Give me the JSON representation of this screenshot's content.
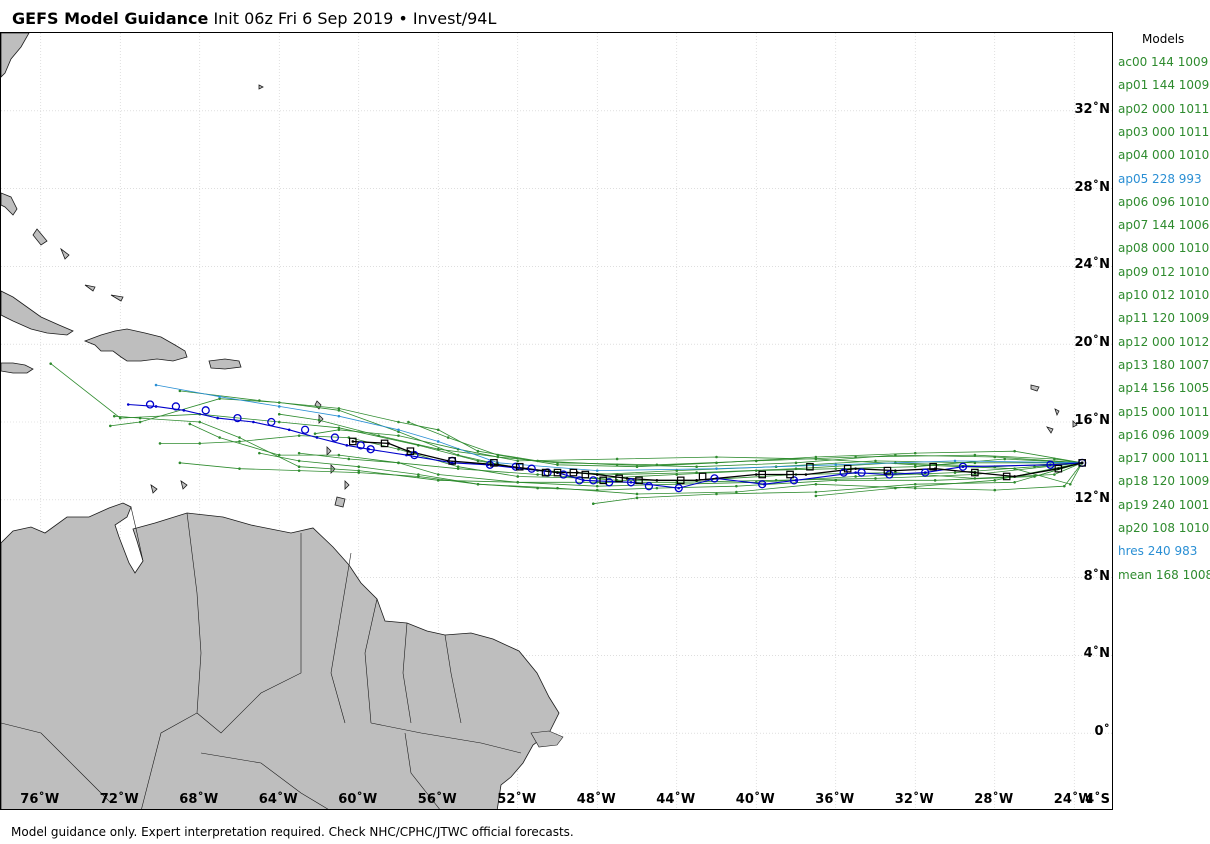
{
  "header": {
    "bold": "GEFS Model Guidance",
    "rest": "Init 06z Fri 6 Sep 2019 • Invest/94L"
  },
  "footer": "Model guidance only. Expert interpretation required. Check NHC/CPHC/JTWC official forecasts.",
  "map": {
    "lon_range": [
      -78,
      -22
    ],
    "lat_range": [
      -4,
      36
    ],
    "lat_ticks": [
      {
        "value": 32,
        "label": "32˚N"
      },
      {
        "value": 28,
        "label": "28˚N"
      },
      {
        "value": 24,
        "label": "24˚N"
      },
      {
        "value": 20,
        "label": "20˚N"
      },
      {
        "value": 16,
        "label": "16˚N"
      },
      {
        "value": 12,
        "label": "12˚N"
      },
      {
        "value": 8,
        "label": "8˚N"
      },
      {
        "value": 4,
        "label": "4˚N"
      },
      {
        "value": 0,
        "label": "0˚"
      },
      {
        "value": -4,
        "label": "4˚S"
      }
    ],
    "lon_ticks": [
      {
        "value": -76,
        "label": "76˚W"
      },
      {
        "value": -72,
        "label": "72˚W"
      },
      {
        "value": -68,
        "label": "68˚W"
      },
      {
        "value": -64,
        "label": "64˚W"
      },
      {
        "value": -60,
        "label": "60˚W"
      },
      {
        "value": -56,
        "label": "56˚W"
      },
      {
        "value": -52,
        "label": "52˚W"
      },
      {
        "value": -48,
        "label": "48˚W"
      },
      {
        "value": -44,
        "label": "44˚W"
      },
      {
        "value": -40,
        "label": "40˚W"
      },
      {
        "value": -36,
        "label": "36˚W"
      },
      {
        "value": -32,
        "label": "32˚W"
      },
      {
        "value": -28,
        "label": "28˚W"
      },
      {
        "value": -24,
        "label": "24˚W"
      }
    ],
    "colors": {
      "land": "#bebebe",
      "coast": "#1a1a1a",
      "grid": "#cccccc",
      "ensemble": "#2e8b2e",
      "hres": "#2a8fd4",
      "mean": "#000000",
      "ensemble_mean_marker": "#0000cc"
    }
  },
  "legend": {
    "title": "Models",
    "items": [
      {
        "text": "ac00 144 1009",
        "color": "#2e8b2e"
      },
      {
        "text": "ap01 144 1009",
        "color": "#2e8b2e"
      },
      {
        "text": "ap02 000 1011",
        "color": "#2e8b2e"
      },
      {
        "text": "ap03 000 1011",
        "color": "#2e8b2e"
      },
      {
        "text": "ap04 000 1010",
        "color": "#2e8b2e"
      },
      {
        "text": "ap05 228 993",
        "color": "#2a8fd4"
      },
      {
        "text": "ap06 096 1010",
        "color": "#2e8b2e"
      },
      {
        "text": "ap07 144 1006",
        "color": "#2e8b2e"
      },
      {
        "text": "ap08 000 1010",
        "color": "#2e8b2e"
      },
      {
        "text": "ap09 012 1010",
        "color": "#2e8b2e"
      },
      {
        "text": "ap10 012 1010",
        "color": "#2e8b2e"
      },
      {
        "text": "ap11 120 1009",
        "color": "#2e8b2e"
      },
      {
        "text": "ap12 000 1012",
        "color": "#2e8b2e"
      },
      {
        "text": "ap13 180 1007",
        "color": "#2e8b2e"
      },
      {
        "text": "ap14 156 1005",
        "color": "#2e8b2e"
      },
      {
        "text": "ap15 000 1011",
        "color": "#2e8b2e"
      },
      {
        "text": "ap16 096 1009",
        "color": "#2e8b2e"
      },
      {
        "text": "ap17 000 1011",
        "color": "#2e8b2e"
      },
      {
        "text": "ap18 120 1009",
        "color": "#2e8b2e"
      },
      {
        "text": "ap19 240 1001",
        "color": "#2e8b2e"
      },
      {
        "text": "ap20 108 1010",
        "color": "#2e8b2e"
      },
      {
        "text": "hres 240 983",
        "color": "#2a8fd4"
      },
      {
        "text": "mean 168 1008",
        "color": "#2e8b2e"
      }
    ]
  },
  "tracks": {
    "mean": [
      [
        -23.6,
        13.9
      ],
      [
        -24.8,
        13.6
      ],
      [
        -27,
        13.2
      ],
      [
        -29,
        13.4
      ],
      [
        -31,
        13.6
      ],
      [
        -33,
        13.5
      ],
      [
        -35,
        13.6
      ],
      [
        -37.5,
        13.3
      ],
      [
        -40,
        13.3
      ],
      [
        -43,
        13.0
      ],
      [
        -45,
        13.0
      ],
      [
        -46.5,
        13.1
      ],
      [
        -48,
        13.3
      ],
      [
        -49,
        13.4
      ],
      [
        -50,
        13.4
      ],
      [
        -51.5,
        13.6
      ],
      [
        -53,
        13.8
      ],
      [
        -55.5,
        14.0
      ],
      [
        -57.5,
        14.5
      ],
      [
        -58.5,
        14.9
      ],
      [
        -60.3,
        15.0
      ]
    ],
    "hres": [
      [
        -23.6,
        13.9
      ],
      [
        -25.2,
        13.8
      ],
      [
        -29.6,
        13.7
      ],
      [
        -31.5,
        13.4
      ],
      [
        -33.5,
        13.3
      ],
      [
        -35,
        13.4
      ],
      [
        -38,
        13.0
      ],
      [
        -39.6,
        12.8
      ],
      [
        -42,
        13.1
      ],
      [
        -43.9,
        12.6
      ],
      [
        -46.3,
        12.9
      ],
      [
        -48.7,
        13.0
      ],
      [
        -50,
        13.4
      ],
      [
        -51.8,
        13.6
      ],
      [
        -53.5,
        13.8
      ],
      [
        -55.3,
        13.9
      ],
      [
        -57.6,
        14.3
      ],
      [
        -59.5,
        14.6
      ],
      [
        -60.6,
        14.8
      ],
      [
        -62.1,
        15.2
      ],
      [
        -63.5,
        15.6
      ],
      [
        -65.3,
        16.0
      ],
      [
        -67.1,
        16.2
      ],
      [
        -68.8,
        16.6
      ],
      [
        -70.2,
        16.8
      ],
      [
        -71.6,
        16.9
      ]
    ],
    "ap05": [
      [
        -23.6,
        13.9
      ],
      [
        -30,
        14.0
      ],
      [
        -36,
        13.8
      ],
      [
        -42,
        13.6
      ],
      [
        -48,
        13.5
      ],
      [
        -53,
        13.9
      ],
      [
        -56,
        15.0
      ],
      [
        -58,
        15.6
      ],
      [
        -61,
        16.3
      ],
      [
        -64,
        16.8
      ],
      [
        -67,
        17.3
      ],
      [
        -70.2,
        17.9
      ]
    ],
    "ensemble": [
      [
        [
          -23.6,
          13.9
        ],
        [
          -28,
          13.7
        ],
        [
          -33,
          13.9
        ],
        [
          -38,
          13.6
        ],
        [
          -43,
          13.4
        ],
        [
          -47,
          13.3
        ],
        [
          -51,
          13.5
        ],
        [
          -54,
          14.0
        ],
        [
          -57,
          14.8
        ],
        [
          -61,
          15.7
        ],
        [
          -64,
          16.0
        ],
        [
          -68,
          16.4
        ],
        [
          -72,
          16.2
        ],
        [
          -75.5,
          19.0
        ]
      ],
      [
        [
          -23.6,
          13.9
        ],
        [
          -29,
          13.9
        ],
        [
          -34,
          14.0
        ],
        [
          -39,
          13.7
        ],
        [
          -44,
          13.5
        ],
        [
          -48,
          13.3
        ],
        [
          -52,
          13.6
        ],
        [
          -55,
          14.3
        ],
        [
          -58,
          15.5
        ],
        [
          -61,
          16.6
        ],
        [
          -64,
          17.0
        ],
        [
          -67,
          17.2
        ],
        [
          -71,
          16.0
        ],
        [
          -72.5,
          15.8
        ]
      ],
      [
        [
          -23.6,
          13.9
        ],
        [
          -28,
          14.2
        ],
        [
          -33,
          14.3
        ],
        [
          -38,
          13.9
        ],
        [
          -43,
          13.7
        ],
        [
          -47,
          13.8
        ],
        [
          -51,
          14.0
        ],
        [
          -54,
          14.5
        ],
        [
          -56,
          15.6
        ],
        [
          -58,
          16.0
        ],
        [
          -61,
          16.7
        ],
        [
          -65,
          17.1
        ],
        [
          -69,
          17.6
        ]
      ],
      [
        [
          -23.6,
          13.9
        ],
        [
          -27,
          14.5
        ],
        [
          -32,
          14.4
        ],
        [
          -37,
          14.2
        ],
        [
          -42,
          13.9
        ],
        [
          -46,
          13.7
        ],
        [
          -50,
          13.8
        ],
        [
          -53,
          14.3
        ],
        [
          -55.5,
          15.2
        ],
        [
          -57.5,
          16.0
        ]
      ],
      [
        [
          -23.6,
          13.9
        ],
        [
          -26,
          13.2
        ],
        [
          -31,
          13.0
        ],
        [
          -36,
          13.0
        ],
        [
          -41,
          12.7
        ],
        [
          -45,
          12.6
        ],
        [
          -48,
          12.5
        ],
        [
          -51,
          12.6
        ],
        [
          -54,
          12.8
        ],
        [
          -57,
          13.2
        ],
        [
          -60,
          13.4
        ],
        [
          -63,
          13.5
        ],
        [
          -66,
          13.6
        ],
        [
          -69,
          13.9
        ]
      ],
      [
        [
          -23.6,
          13.9
        ],
        [
          -27,
          12.9
        ],
        [
          -32,
          12.8
        ],
        [
          -37,
          12.4
        ],
        [
          -42,
          12.3
        ],
        [
          -46,
          12.1
        ],
        [
          -48.2,
          11.8
        ]
      ],
      [
        [
          -23.6,
          13.9
        ],
        [
          -28,
          13.0
        ],
        [
          -33,
          12.6
        ],
        [
          -37,
          12.2
        ]
      ],
      [
        [
          -23.6,
          13.9
        ],
        [
          -29,
          13.3
        ],
        [
          -34,
          13.1
        ],
        [
          -39,
          13.0
        ],
        [
          -44,
          12.9
        ],
        [
          -48,
          12.9
        ],
        [
          -52,
          12.9
        ],
        [
          -56,
          13.0
        ],
        [
          -60,
          13.5
        ],
        [
          -63,
          13.7
        ],
        [
          -66,
          15.2
        ],
        [
          -68,
          16.0
        ],
        [
          -71,
          16.2
        ],
        [
          -72.3,
          16.3
        ]
      ],
      [
        [
          -23.6,
          13.9
        ],
        [
          -27.5,
          14.1
        ],
        [
          -32,
          13.7
        ],
        [
          -36,
          13.6
        ],
        [
          -40,
          13.5
        ],
        [
          -44,
          13.3
        ],
        [
          -48,
          13.1
        ],
        [
          -52,
          13.2
        ],
        [
          -55,
          13.7
        ],
        [
          -58,
          14.6
        ],
        [
          -60.5,
          15.2
        ],
        [
          -63,
          15.3
        ],
        [
          -66,
          15.0
        ],
        [
          -68,
          14.9
        ],
        [
          -70,
          14.9
        ]
      ],
      [
        [
          -23.6,
          13.9
        ],
        [
          -26,
          13.7
        ],
        [
          -30,
          13.4
        ],
        [
          -35,
          13.2
        ],
        [
          -40,
          12.9
        ],
        [
          -44,
          12.8
        ],
        [
          -48,
          12.7
        ],
        [
          -52,
          12.9
        ],
        [
          -56,
          13.3
        ],
        [
          -58,
          13.9
        ],
        [
          -61,
          14.3
        ],
        [
          -64,
          14.3
        ],
        [
          -67,
          15.2
        ],
        [
          -68.5,
          15.9
        ]
      ],
      [
        [
          -23.6,
          13.9
        ],
        [
          -25,
          14.1
        ],
        [
          -29,
          14.3
        ],
        [
          -35,
          14.2
        ],
        [
          -40,
          14.0
        ],
        [
          -45,
          13.8
        ],
        [
          -50,
          13.9
        ],
        [
          -53,
          14.2
        ],
        [
          -56,
          14.6
        ],
        [
          -59,
          15.3
        ],
        [
          -62,
          16.1
        ],
        [
          -64,
          16.4
        ]
      ],
      [
        [
          -23.6,
          13.9
        ],
        [
          -25,
          13.3
        ],
        [
          -29,
          13.1
        ],
        [
          -33,
          13.4
        ],
        [
          -38,
          13.3
        ],
        [
          -43,
          13.0
        ],
        [
          -47,
          13.0
        ],
        [
          -51,
          13.3
        ],
        [
          -55,
          13.6
        ],
        [
          -58,
          13.9
        ],
        [
          -60.5,
          14.1
        ],
        [
          -63,
          14.4
        ]
      ],
      [
        [
          -23.6,
          13.9
        ],
        [
          -24.5,
          12.7
        ],
        [
          -28,
          12.5
        ],
        [
          -32,
          12.6
        ],
        [
          -37,
          12.8
        ],
        [
          -41,
          12.4
        ],
        [
          -46,
          12.3
        ],
        [
          -50,
          12.6
        ],
        [
          -54,
          12.8
        ],
        [
          -57,
          13.3
        ],
        [
          -60,
          13.7
        ],
        [
          -63,
          14.0
        ],
        [
          -65,
          14.4
        ]
      ],
      [
        [
          -23.6,
          13.9
        ],
        [
          -24.2,
          12.8
        ],
        [
          -27,
          13.6
        ],
        [
          -32,
          13.8
        ],
        [
          -37,
          14.1
        ],
        [
          -42,
          14.2
        ],
        [
          -47,
          14.1
        ],
        [
          -52,
          14.0
        ],
        [
          -55,
          14.6
        ],
        [
          -58,
          15.3
        ],
        [
          -61,
          15.6
        ],
        [
          -62.2,
          15.4
        ]
      ]
    ],
    "mean_markers": [
      [
        -23.6,
        13.9
      ],
      [
        -24.8,
        13.6
      ],
      [
        -27.4,
        13.2
      ],
      [
        -29,
        13.4
      ],
      [
        -31.1,
        13.7
      ],
      [
        -33.4,
        13.5
      ],
      [
        -35.4,
        13.6
      ],
      [
        -37.3,
        13.7
      ],
      [
        -38.3,
        13.3
      ],
      [
        -39.7,
        13.3
      ],
      [
        -42.7,
        13.2
      ],
      [
        -43.8,
        13.0
      ],
      [
        -45.9,
        13.0
      ],
      [
        -46.9,
        13.1
      ],
      [
        -47.7,
        13.0
      ],
      [
        -48.6,
        13.3
      ],
      [
        -49.2,
        13.4
      ],
      [
        -50.0,
        13.4
      ],
      [
        -50.6,
        13.4
      ],
      [
        -51.9,
        13.7
      ],
      [
        -53.2,
        13.9
      ],
      [
        -55.3,
        14.0
      ],
      [
        -57.4,
        14.5
      ],
      [
        -58.7,
        14.9
      ],
      [
        -60.3,
        15.0
      ]
    ],
    "hres_markers": [
      [
        -23.6,
        13.9
      ],
      [
        -25.2,
        13.8
      ],
      [
        -29.6,
        13.7
      ],
      [
        -31.5,
        13.4
      ],
      [
        -33.3,
        13.3
      ],
      [
        -34.7,
        13.4
      ],
      [
        -35.6,
        13.4
      ],
      [
        -38.1,
        13.0
      ],
      [
        -39.7,
        12.8
      ],
      [
        -42.1,
        13.1
      ],
      [
        -43.9,
        12.6
      ],
      [
        -45.4,
        12.7
      ],
      [
        -46.3,
        12.9
      ],
      [
        -47.4,
        12.9
      ],
      [
        -48.2,
        13.0
      ],
      [
        -48.9,
        13.0
      ],
      [
        -49.7,
        13.3
      ],
      [
        -50.5,
        13.4
      ],
      [
        -51.3,
        13.6
      ],
      [
        -52.1,
        13.7
      ],
      [
        -53.4,
        13.8
      ],
      [
        -55.3,
        14.0
      ],
      [
        -57.2,
        14.3
      ],
      [
        -59.4,
        14.6
      ],
      [
        -59.9,
        14.8
      ],
      [
        -61.2,
        15.2
      ],
      [
        -62.7,
        15.6
      ],
      [
        -64.4,
        16.0
      ],
      [
        -66.1,
        16.2
      ],
      [
        -67.7,
        16.6
      ],
      [
        -69.2,
        16.8
      ],
      [
        -70.5,
        16.9
      ]
    ]
  }
}
